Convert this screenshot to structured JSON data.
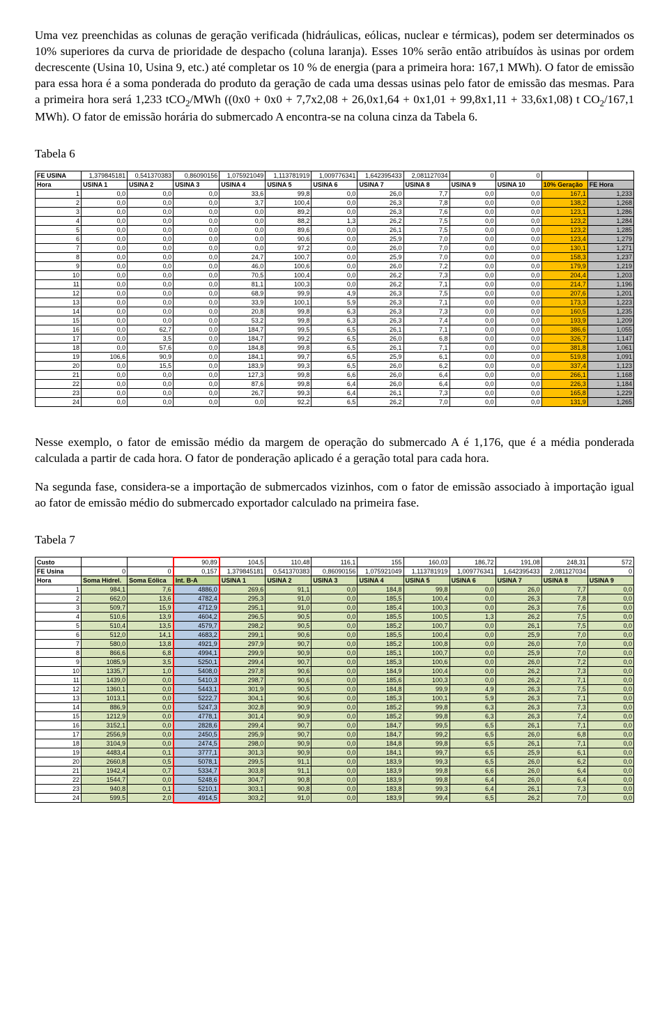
{
  "para1": "Uma vez preenchidas as colunas de geração verificada (hidráulicas, eólicas, nuclear e térmicas), podem ser determinados os 10% superiores da curva de prioridade de despacho (coluna laranja). Esses 10% serão então atribuídos às usinas por ordem decrescente (Usina 10, Usina 9, etc.) até completar os 10 % de energia (para a primeira hora: 167,1 MWh). O fator de emissão para essa hora é a soma ponderada do produto da geração de cada uma dessas usinas pelo fator de emissão das mesmas. Para a primeira hora será 1,233 tCO",
  "para1_sub": "2",
  "para1_cont": "/MWh ((0x0 + 0x0 + 7,7x2,08 + 26,0x1,64 + 0x1,01 + 99,8x1,11 + 33,6x1,08) t CO",
  "para1_sub2": "2",
  "para1_end": "/167,1 MWh).   O fator de emissão horária do submercado A encontra-se na coluna cinza da Tabela 6.",
  "tabela6_title": "Tabela 6",
  "para2": "Nesse exemplo, o fator de emissão médio da margem de operação do submercado A é 1,176, que é a média ponderada calculada a partir de cada hora. O fator de ponderação aplicado é a geração total para cada hora.",
  "para3": "Na segunda fase, considera-se a importação de submercados vizinhos, com o fator de emissão associado à importação igual ao fator de emissão médio do submercado exportador calculado na primeira fase.",
  "tabela7_title": "Tabela 7",
  "t6": {
    "fe_label": "FE USINA",
    "fe_vals": [
      "1,379845181",
      "0,541370383",
      "0,86090156",
      "1,075921049",
      "1,113781919",
      "1,009776341",
      "1,642395433",
      "2,081127034",
      "0",
      "0"
    ],
    "hdr": [
      "Hora",
      "USINA 1",
      "USINA 2",
      "USINA 3",
      "USINA 4",
      "USINA 5",
      "USINA 6",
      "USINA 7",
      "USINA 8",
      "USINA 9",
      "USINA 10",
      "10% Geração",
      "FE Hora"
    ],
    "rows": [
      [
        "1",
        "0,0",
        "0,0",
        "0,0",
        "33,6",
        "99,8",
        "0,0",
        "26,0",
        "7,7",
        "0,0",
        "0,0",
        "167,1",
        "1,233"
      ],
      [
        "2",
        "0,0",
        "0,0",
        "0,0",
        "3,7",
        "100,4",
        "0,0",
        "26,3",
        "7,8",
        "0,0",
        "0,0",
        "138,2",
        "1,268"
      ],
      [
        "3",
        "0,0",
        "0,0",
        "0,0",
        "0,0",
        "89,2",
        "0,0",
        "26,3",
        "7,6",
        "0,0",
        "0,0",
        "123,1",
        "1,286"
      ],
      [
        "4",
        "0,0",
        "0,0",
        "0,0",
        "0,0",
        "88,2",
        "1,3",
        "26,2",
        "7,5",
        "0,0",
        "0,0",
        "123,2",
        "1,284"
      ],
      [
        "5",
        "0,0",
        "0,0",
        "0,0",
        "0,0",
        "89,6",
        "0,0",
        "26,1",
        "7,5",
        "0,0",
        "0,0",
        "123,2",
        "1,285"
      ],
      [
        "6",
        "0,0",
        "0,0",
        "0,0",
        "0,0",
        "90,6",
        "0,0",
        "25,9",
        "7,0",
        "0,0",
        "0,0",
        "123,4",
        "1,279"
      ],
      [
        "7",
        "0,0",
        "0,0",
        "0,0",
        "0,0",
        "97,2",
        "0,0",
        "26,0",
        "7,0",
        "0,0",
        "0,0",
        "130,1",
        "1,271"
      ],
      [
        "8",
        "0,0",
        "0,0",
        "0,0",
        "24,7",
        "100,7",
        "0,0",
        "25,9",
        "7,0",
        "0,0",
        "0,0",
        "158,3",
        "1,237"
      ],
      [
        "9",
        "0,0",
        "0,0",
        "0,0",
        "46,0",
        "100,6",
        "0,0",
        "26,0",
        "7,2",
        "0,0",
        "0,0",
        "179,9",
        "1,219"
      ],
      [
        "10",
        "0,0",
        "0,0",
        "0,0",
        "70,5",
        "100,4",
        "0,0",
        "26,2",
        "7,3",
        "0,0",
        "0,0",
        "204,4",
        "1,203"
      ],
      [
        "11",
        "0,0",
        "0,0",
        "0,0",
        "81,1",
        "100,3",
        "0,0",
        "26,2",
        "7,1",
        "0,0",
        "0,0",
        "214,7",
        "1,196"
      ],
      [
        "12",
        "0,0",
        "0,0",
        "0,0",
        "68,9",
        "99,9",
        "4,9",
        "26,3",
        "7,5",
        "0,0",
        "0,0",
        "207,6",
        "1,201"
      ],
      [
        "13",
        "0,0",
        "0,0",
        "0,0",
        "33,9",
        "100,1",
        "5,9",
        "26,3",
        "7,1",
        "0,0",
        "0,0",
        "173,3",
        "1,223"
      ],
      [
        "14",
        "0,0",
        "0,0",
        "0,0",
        "20,8",
        "99,8",
        "6,3",
        "26,3",
        "7,3",
        "0,0",
        "0,0",
        "160,5",
        "1,235"
      ],
      [
        "15",
        "0,0",
        "0,0",
        "0,0",
        "53,2",
        "99,8",
        "6,3",
        "26,3",
        "7,4",
        "0,0",
        "0,0",
        "193,9",
        "1,209"
      ],
      [
        "16",
        "0,0",
        "62,7",
        "0,0",
        "184,7",
        "99,5",
        "6,5",
        "26,1",
        "7,1",
        "0,0",
        "0,0",
        "386,6",
        "1,055"
      ],
      [
        "17",
        "0,0",
        "3,5",
        "0,0",
        "184,7",
        "99,2",
        "6,5",
        "26,0",
        "6,8",
        "0,0",
        "0,0",
        "326,7",
        "1,147"
      ],
      [
        "18",
        "0,0",
        "57,6",
        "0,0",
        "184,8",
        "99,8",
        "6,5",
        "26,1",
        "7,1",
        "0,0",
        "0,0",
        "381,8",
        "1,061"
      ],
      [
        "19",
        "106,6",
        "90,9",
        "0,0",
        "184,1",
        "99,7",
        "6,5",
        "25,9",
        "6,1",
        "0,0",
        "0,0",
        "519,8",
        "1,091"
      ],
      [
        "20",
        "0,0",
        "15,5",
        "0,0",
        "183,9",
        "99,3",
        "6,5",
        "26,0",
        "6,2",
        "0,0",
        "0,0",
        "337,4",
        "1,123"
      ],
      [
        "21",
        "0,0",
        "0,0",
        "0,0",
        "127,3",
        "99,8",
        "6,6",
        "26,0",
        "6,4",
        "0,0",
        "0,0",
        "266,1",
        "1,168"
      ],
      [
        "22",
        "0,0",
        "0,0",
        "0,0",
        "87,6",
        "99,8",
        "6,4",
        "26,0",
        "6,4",
        "0,0",
        "0,0",
        "226,3",
        "1,184"
      ],
      [
        "23",
        "0,0",
        "0,0",
        "0,0",
        "26,7",
        "99,3",
        "6,4",
        "26,1",
        "7,3",
        "0,0",
        "0,0",
        "165,8",
        "1,229"
      ],
      [
        "24",
        "0,0",
        "0,0",
        "0,0",
        "0,0",
        "92,2",
        "6,5",
        "26,2",
        "7,0",
        "0,0",
        "0,0",
        "131,9",
        "1,265"
      ]
    ],
    "orange_col": 11,
    "grey_col": 12
  },
  "t7": {
    "custo_label": "Custo",
    "custo_vals": [
      "",
      "",
      "90,89",
      "104,5",
      "110,48",
      "116,1",
      "155",
      "160,03",
      "186,72",
      "191,08",
      "248,31",
      "572"
    ],
    "fe_label": "FE Usina",
    "fe_vals": [
      "0",
      "0",
      "0,157",
      "1,379845181",
      "0,541370383",
      "0,86090156",
      "1,075921049",
      "1,113781919",
      "1,009776341",
      "1,642395433",
      "2,081127034",
      "0"
    ],
    "hdr": [
      "Hora",
      "Soma Hidrel.",
      "Soma Eólica",
      "Int. B-A",
      "USINA 1",
      "USINA 2",
      "USINA 3",
      "USINA 4",
      "USINA 5",
      "USINA 6",
      "USINA 7",
      "USINA 8",
      "USINA 9"
    ],
    "rows": [
      [
        "1",
        "984,1",
        "7,6",
        "4886,0",
        "269,6",
        "91,1",
        "0,0",
        "184,8",
        "99,8",
        "0,0",
        "26,0",
        "7,7",
        "0,0"
      ],
      [
        "2",
        "662,0",
        "13,6",
        "4782,4",
        "295,3",
        "91,0",
        "0,0",
        "185,5",
        "100,4",
        "0,0",
        "26,3",
        "7,8",
        "0,0"
      ],
      [
        "3",
        "509,7",
        "15,9",
        "4712,9",
        "295,1",
        "91,0",
        "0,0",
        "185,4",
        "100,3",
        "0,0",
        "26,3",
        "7,6",
        "0,0"
      ],
      [
        "4",
        "510,6",
        "13,9",
        "4604,2",
        "296,5",
        "90,5",
        "0,0",
        "185,5",
        "100,5",
        "1,3",
        "26,2",
        "7,5",
        "0,0"
      ],
      [
        "5",
        "510,4",
        "13,5",
        "4579,7",
        "298,2",
        "90,5",
        "0,0",
        "185,2",
        "100,7",
        "0,0",
        "26,1",
        "7,5",
        "0,0"
      ],
      [
        "6",
        "512,0",
        "14,1",
        "4683,2",
        "299,1",
        "90,6",
        "0,0",
        "185,5",
        "100,4",
        "0,0",
        "25,9",
        "7,0",
        "0,0"
      ],
      [
        "7",
        "580,0",
        "13,8",
        "4921,9",
        "297,9",
        "90,7",
        "0,0",
        "185,2",
        "100,8",
        "0,0",
        "26,0",
        "7,0",
        "0,0"
      ],
      [
        "8",
        "866,6",
        "6,8",
        "4994,1",
        "299,9",
        "90,9",
        "0,0",
        "185,1",
        "100,7",
        "0,0",
        "25,9",
        "7,0",
        "0,0"
      ],
      [
        "9",
        "1085,9",
        "3,5",
        "5250,1",
        "299,4",
        "90,7",
        "0,0",
        "185,3",
        "100,6",
        "0,0",
        "26,0",
        "7,2",
        "0,0"
      ],
      [
        "10",
        "1335,7",
        "1,0",
        "5408,0",
        "297,8",
        "90,6",
        "0,0",
        "184,9",
        "100,4",
        "0,0",
        "26,2",
        "7,3",
        "0,0"
      ],
      [
        "11",
        "1439,0",
        "0,0",
        "5410,3",
        "298,7",
        "90,6",
        "0,0",
        "185,6",
        "100,3",
        "0,0",
        "26,2",
        "7,1",
        "0,0"
      ],
      [
        "12",
        "1360,1",
        "0,0",
        "5443,1",
        "301,9",
        "90,5",
        "0,0",
        "184,8",
        "99,9",
        "4,9",
        "26,3",
        "7,5",
        "0,0"
      ],
      [
        "13",
        "1013,1",
        "0,0",
        "5222,7",
        "304,1",
        "90,6",
        "0,0",
        "185,3",
        "100,1",
        "5,9",
        "26,3",
        "7,1",
        "0,0"
      ],
      [
        "14",
        "886,9",
        "0,0",
        "5247,3",
        "302,8",
        "90,9",
        "0,0",
        "185,2",
        "99,8",
        "6,3",
        "26,3",
        "7,3",
        "0,0"
      ],
      [
        "15",
        "1212,9",
        "0,0",
        "4778,1",
        "301,4",
        "90,9",
        "0,0",
        "185,2",
        "99,8",
        "6,3",
        "26,3",
        "7,4",
        "0,0"
      ],
      [
        "16",
        "3152,1",
        "0,0",
        "2828,6",
        "299,4",
        "90,7",
        "0,0",
        "184,7",
        "99,5",
        "6,5",
        "26,1",
        "7,1",
        "0,0"
      ],
      [
        "17",
        "2556,9",
        "0,0",
        "2450,5",
        "295,9",
        "90,7",
        "0,0",
        "184,7",
        "99,2",
        "6,5",
        "26,0",
        "6,8",
        "0,0"
      ],
      [
        "18",
        "3104,9",
        "0,0",
        "2474,5",
        "298,0",
        "90,9",
        "0,0",
        "184,8",
        "99,8",
        "6,5",
        "26,1",
        "7,1",
        "0,0"
      ],
      [
        "19",
        "4483,4",
        "0,1",
        "3777,1",
        "301,3",
        "90,9",
        "0,0",
        "184,1",
        "99,7",
        "6,5",
        "25,9",
        "6,1",
        "0,0"
      ],
      [
        "20",
        "2660,8",
        "0,5",
        "5078,1",
        "299,5",
        "91,1",
        "0,0",
        "183,9",
        "99,3",
        "6,5",
        "26,0",
        "6,2",
        "0,0"
      ],
      [
        "21",
        "1942,4",
        "0,7",
        "5334,7",
        "303,8",
        "91,1",
        "0,0",
        "183,9",
        "99,8",
        "6,6",
        "26,0",
        "6,4",
        "0,0"
      ],
      [
        "22",
        "1544,7",
        "0,0",
        "5248,6",
        "304,7",
        "90,8",
        "0,0",
        "183,9",
        "99,8",
        "6,4",
        "26,0",
        "6,4",
        "0,0"
      ],
      [
        "23",
        "940,8",
        "0,1",
        "5210,1",
        "303,1",
        "90,8",
        "0,0",
        "183,8",
        "99,3",
        "6,4",
        "26,1",
        "7,3",
        "0,0"
      ],
      [
        "24",
        "599,5",
        "2,0",
        "4914,5",
        "303,2",
        "91,0",
        "0,0",
        "183,9",
        "99,4",
        "6,5",
        "26,2",
        "7,0",
        "0,0"
      ]
    ]
  }
}
